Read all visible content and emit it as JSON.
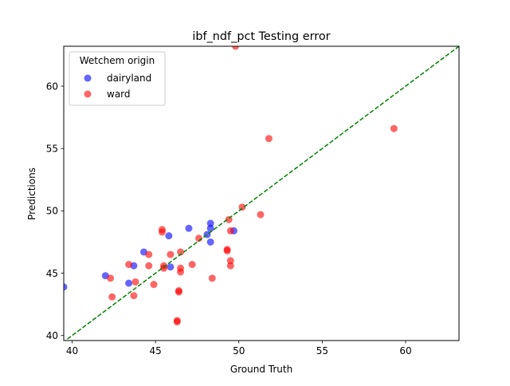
{
  "chart_data": {
    "type": "scatter",
    "title": "ibf_ndf_pct Testing error",
    "xlabel": "Ground Truth",
    "ylabel": "Predictions",
    "xlim": [
      39.5,
      63.2
    ],
    "ylim": [
      39.6,
      63.2
    ],
    "xticks": [
      40,
      45,
      50,
      55,
      60
    ],
    "yticks": [
      40,
      45,
      50,
      55,
      60
    ],
    "grid": false,
    "legend": {
      "title": "Wetchem origin",
      "position": "top-left"
    },
    "reference_line": {
      "type": "y=x",
      "style": "dashed",
      "color": "#008000"
    },
    "series": [
      {
        "name": "dairyland",
        "color": "#0000ff",
        "points": [
          [
            39.5,
            43.9
          ],
          [
            42.0,
            44.8
          ],
          [
            43.4,
            44.2
          ],
          [
            43.7,
            45.6
          ],
          [
            44.3,
            46.7
          ],
          [
            45.8,
            48.0
          ],
          [
            45.9,
            45.5
          ],
          [
            47.0,
            48.6
          ],
          [
            48.1,
            48.1
          ],
          [
            48.3,
            48.6
          ],
          [
            48.3,
            49.0
          ],
          [
            48.3,
            47.5
          ],
          [
            49.7,
            48.4
          ]
        ]
      },
      {
        "name": "ward",
        "color": "#ff0000",
        "points": [
          [
            42.3,
            44.6
          ],
          [
            42.4,
            43.1
          ],
          [
            43.4,
            45.7
          ],
          [
            43.7,
            43.2
          ],
          [
            43.8,
            44.3
          ],
          [
            44.6,
            46.5
          ],
          [
            44.6,
            45.6
          ],
          [
            44.9,
            44.1
          ],
          [
            45.4,
            48.5
          ],
          [
            45.4,
            48.3
          ],
          [
            45.5,
            45.6
          ],
          [
            45.5,
            45.4
          ],
          [
            45.9,
            46.5
          ],
          [
            46.3,
            41.2
          ],
          [
            46.3,
            41.1
          ],
          [
            46.4,
            43.5
          ],
          [
            46.4,
            43.6
          ],
          [
            46.5,
            45.4
          ],
          [
            46.5,
            45.1
          ],
          [
            46.5,
            46.7
          ],
          [
            47.2,
            45.7
          ],
          [
            47.6,
            47.8
          ],
          [
            48.4,
            44.6
          ],
          [
            49.3,
            46.8
          ],
          [
            49.3,
            46.9
          ],
          [
            49.4,
            49.3
          ],
          [
            49.5,
            48.4
          ],
          [
            49.5,
            46.0
          ],
          [
            49.5,
            45.6
          ],
          [
            49.8,
            63.2
          ],
          [
            50.2,
            50.3
          ],
          [
            51.3,
            49.7
          ],
          [
            51.8,
            55.8
          ],
          [
            59.3,
            56.6
          ]
        ]
      }
    ]
  }
}
